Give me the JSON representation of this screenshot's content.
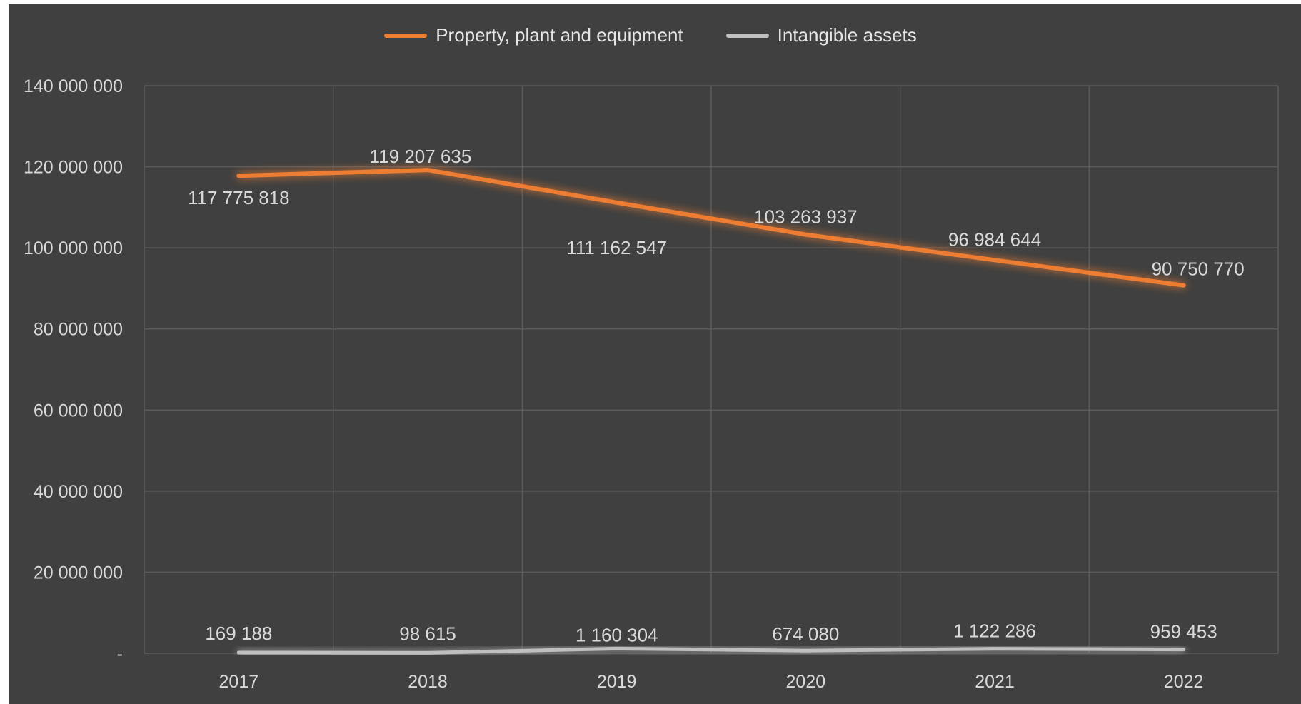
{
  "chart_data": {
    "type": "line",
    "title": "",
    "xlabel": "",
    "ylabel": "",
    "categories": [
      "2017",
      "2018",
      "2019",
      "2020",
      "2021",
      "2022"
    ],
    "ylim": [
      0,
      140000000
    ],
    "y_ticks": [
      {
        "value": 0,
        "label": "-"
      },
      {
        "value": 20000000,
        "label": "20 000 000"
      },
      {
        "value": 40000000,
        "label": "40 000 000"
      },
      {
        "value": 60000000,
        "label": "60 000 000"
      },
      {
        "value": 80000000,
        "label": "80 000 000"
      },
      {
        "value": 100000000,
        "label": "100 000 000"
      },
      {
        "value": 120000000,
        "label": "120 000 000"
      },
      {
        "value": 140000000,
        "label": "140 000 000"
      }
    ],
    "grid": true,
    "legend_position": "top",
    "series": [
      {
        "name": "Property, plant and equipment",
        "color": "#ED7D31",
        "values": [
          117775818,
          119207635,
          111162547,
          103263937,
          96984644,
          90750770
        ],
        "labels": [
          "117 775 818",
          "119 207 635",
          "111 162 547",
          "103 263 937",
          "96 984 644",
          "90 750 770"
        ]
      },
      {
        "name": "Intangible assets",
        "color": "#BFBFBF",
        "values": [
          169188,
          98615,
          1160304,
          674080,
          1122286,
          959453
        ],
        "labels": [
          "169 188",
          "98 615",
          "1 160 304",
          "674 080",
          "1 122 286",
          "959 453"
        ]
      }
    ]
  }
}
